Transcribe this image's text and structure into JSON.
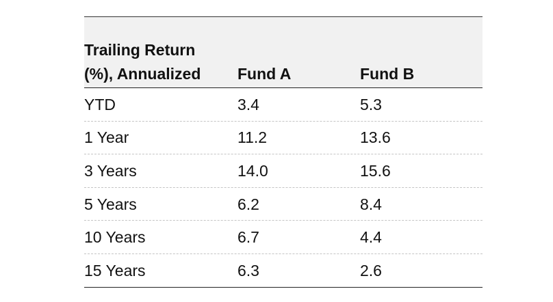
{
  "table": {
    "header": {
      "period_label_line1": "Trailing Return",
      "period_label_line2": "(%), Annualized",
      "fund_a": "Fund A",
      "fund_b": "Fund B"
    },
    "rows": [
      {
        "period": "YTD",
        "fund_a": "3.4",
        "fund_b": "5.3"
      },
      {
        "period": "1 Year",
        "fund_a": "11.2",
        "fund_b": "13.6"
      },
      {
        "period": "3 Years",
        "fund_a": "14.0",
        "fund_b": "15.6"
      },
      {
        "period": "5 Years",
        "fund_a": "6.2",
        "fund_b": "8.4"
      },
      {
        "period": "10 Years",
        "fund_a": "6.7",
        "fund_b": "4.4"
      },
      {
        "period": "15 Years",
        "fund_a": "6.3",
        "fund_b": "2.6"
      }
    ]
  },
  "colors": {
    "header_background": "#f1f1f1",
    "rule": "#222222",
    "row_divider": "#c4c4c4",
    "text": "#111111"
  }
}
